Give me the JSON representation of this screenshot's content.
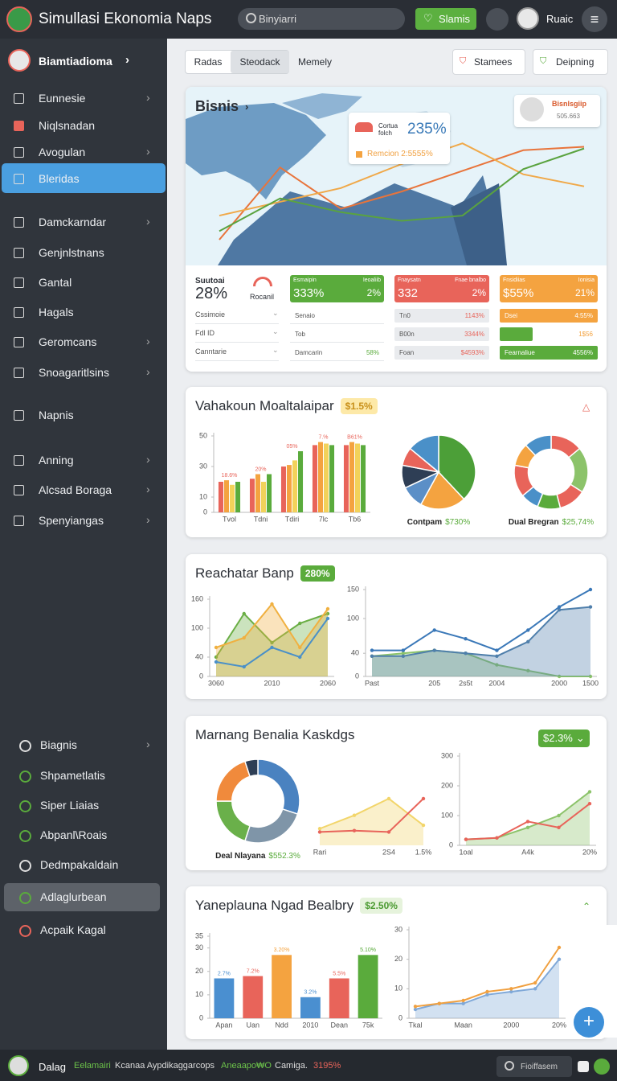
{
  "header": {
    "title": "Simullasi Ekonomia Naps",
    "search": "Binyiarri",
    "button": "Slamis",
    "user": "Ruaic"
  },
  "sidebar": {
    "profile": "Biamtiadioma",
    "menu": [
      "Eunnesie",
      "Niqlsnadan",
      "Avogulan",
      "Bleridas",
      "Damckarndar",
      "Genjnlstnans",
      "Gantal",
      "Hagals",
      "Geromcans",
      "Snoagaritlsins",
      "Napnis",
      "Anning",
      "Alcsad Boraga",
      "Spenyiangas"
    ],
    "active": 3,
    "lower": [
      "Biagnis",
      "Shpametlatis",
      "Siper Liaias",
      "Abpanl\\Roais",
      "Dedmpakaldain",
      "Adlaglurbean",
      "Acpaik Kagal"
    ],
    "lower_active": 5
  },
  "toolbar": {
    "tabs": [
      "Radas",
      "Steodack",
      "Memely"
    ],
    "active_tab": 1,
    "actions": [
      "Stamees",
      "Deipning"
    ]
  },
  "overview": {
    "title": "Bisnis",
    "profile": {
      "name": "Bisnlsgiip",
      "value": "505.663"
    },
    "callout": {
      "label": "Cortua folch",
      "value": "235%",
      "note": "Remcion 2:5555%"
    },
    "chart": {
      "type": "line",
      "ylim": [
        0,
        100
      ],
      "series": [
        {
          "color": "#e8743b",
          "values": [
            14,
            56,
            32,
            42,
            54,
            66,
            68
          ]
        },
        {
          "color": "#f0a848",
          "values": [
            28,
            36,
            44,
            58,
            70,
            52,
            45
          ]
        },
        {
          "color": "#5aa33f",
          "values": [
            19,
            38,
            30,
            25,
            28,
            55,
            67
          ]
        }
      ]
    },
    "summary": {
      "label": "Suutoai",
      "value": "28%",
      "brand": "Rocanil",
      "rows": [
        "Cssimoie",
        "Fdl ID",
        "Canntarie"
      ]
    },
    "tiles": [
      {
        "color": "#5aab3c",
        "title": "Esmaipin",
        "subtitle": "Ieoaliib",
        "value": "333%",
        "change": "2%",
        "rows": [
          {
            "label": "Senaio"
          },
          {
            "label": "Tob"
          },
          {
            "label": "Damcarin",
            "value": "58%"
          }
        ]
      },
      {
        "color": "#e8645a",
        "title": "Fnaysatn",
        "subtitle": "Fnae bnalbo",
        "value": "332",
        "change": "2%",
        "rows": [
          {
            "label": "Tn0",
            "value": "1143%"
          },
          {
            "label": "B00n",
            "value": "3344%"
          },
          {
            "label": "Foan",
            "value": "$4593%"
          }
        ]
      },
      {
        "color": "#f4a340",
        "title": "Fnsidiias",
        "subtitle": "Ionisia",
        "value": "$55%",
        "change": "21%",
        "rows": [
          {
            "label": "Dsei",
            "value": "4:55%"
          },
          {
            "value": "1$56"
          },
          {
            "label": "Fearnaliue",
            "value": "4556%"
          }
        ]
      }
    ]
  },
  "cards": [
    {
      "title": "Vahakoun Moaltalaipar",
      "badge": "$1.5%",
      "charts": [
        {
          "type": "bar",
          "categories": [
            "Tvol",
            "Tdni",
            "Tdiri",
            "7lc",
            "Tb6"
          ],
          "ylim": [
            0,
            50
          ],
          "yticks": [
            0,
            10,
            30,
            50
          ],
          "labels": [
            "18.6%",
            "20%",
            "05%",
            "7.%",
            "B61%"
          ],
          "series": [
            {
              "color": "#e8645a",
              "values": [
                20,
                22,
                30,
                44,
                44
              ]
            },
            {
              "color": "#f4a340",
              "values": [
                21,
                25,
                31,
                46,
                46
              ]
            },
            {
              "color": "#f2d25a",
              "values": [
                18,
                20,
                34,
                45,
                45
              ]
            },
            {
              "color": "#5aab3c",
              "values": [
                20,
                25,
                40,
                44,
                44
              ]
            }
          ]
        },
        {
          "type": "pie",
          "values": [
            38,
            20,
            10,
            10,
            8,
            14
          ],
          "colors": [
            "#4c9f38",
            "#f4a340",
            "#5b8fc7",
            "#2e3e55",
            "#e8645a",
            "#4a90c8"
          ],
          "donut": false,
          "caption": "Contpam",
          "caption_value": "$730%"
        },
        {
          "type": "pie",
          "values": [
            14,
            20,
            12,
            10,
            8,
            14,
            10,
            12
          ],
          "colors": [
            "#e8645a",
            "#8cc36a",
            "#e8645a",
            "#5aab3c",
            "#4a90c8",
            "#e8645a",
            "#f4a340",
            "#4a90c8"
          ],
          "donut": true,
          "caption": "Dual Bregran",
          "caption_value": "$25,74%"
        }
      ]
    },
    {
      "title": "Reachatar Banp",
      "badge": "280%",
      "charts": [
        {
          "type": "line",
          "categories": [
            "3060",
            null,
            "2010",
            null,
            "2060"
          ],
          "ylim": [
            0,
            160
          ],
          "yticks": [
            0,
            40,
            100,
            160
          ],
          "markers": true,
          "series": [
            {
              "color": "#6aae45",
              "area": true,
              "values": [
                40,
                130,
                70,
                110,
                130
              ]
            },
            {
              "color": "#f0b040",
              "area": true,
              "values": [
                60,
                80,
                150,
                60,
                140
              ]
            },
            {
              "color": "#4a90c8",
              "values": [
                30,
                20,
                60,
                40,
                120
              ]
            }
          ]
        },
        {
          "type": "line",
          "categories": [
            "Past",
            null,
            "205",
            "2s5t",
            "2004",
            null,
            "2000",
            "1500"
          ],
          "ylim": [
            0,
            150
          ],
          "yticks": [
            0,
            40,
            100,
            150
          ],
          "markers": true,
          "series": [
            {
              "color": "#8cc36a",
              "area": true,
              "values": [
                35,
                40,
                45,
                40,
                20,
                10,
                0,
                0
              ]
            },
            {
              "color": "#4f7fab",
              "area": true,
              "values": [
                35,
                35,
                45,
                40,
                35,
                60,
                115,
                120
              ]
            },
            {
              "color": "#3a78b8",
              "values": [
                45,
                45,
                80,
                65,
                45,
                80,
                120,
                150
              ]
            }
          ]
        }
      ]
    },
    {
      "title": "Marnang Benalia Kaskdgs",
      "badge": "$2.3%",
      "charts": [
        {
          "type": "pie",
          "values": [
            30,
            25,
            20,
            20,
            5
          ],
          "colors": [
            "#4a82c0",
            "#7f95a8",
            "#6ab04a",
            "#f08a3c",
            "#2e3e55"
          ],
          "donut": true,
          "caption": "Deal Nlayana",
          "caption_value": "$552.3%"
        },
        {
          "type": "line",
          "categories": [
            "Rari",
            null,
            "2S4",
            "1.5%"
          ],
          "ylim": [
            0,
            100
          ],
          "markers": true,
          "series": [
            {
              "color": "#f2d56a",
              "area": true,
              "values": [
                25,
                45,
                70,
                30
              ]
            },
            {
              "color": "#e8645a",
              "values": [
                20,
                22,
                20,
                70
              ]
            }
          ]
        },
        {
          "type": "line",
          "categories": [
            "1oal",
            null,
            "A4k",
            null,
            "20%"
          ],
          "ylim": [
            0,
            300
          ],
          "yticks": [
            0,
            100,
            200,
            300
          ],
          "markers": true,
          "series": [
            {
              "color": "#8cc36a",
              "area": true,
              "values": [
                20,
                25,
                60,
                100,
                180
              ]
            },
            {
              "color": "#e8645a",
              "values": [
                20,
                25,
                80,
                60,
                140
              ]
            }
          ]
        }
      ]
    },
    {
      "title": "Yaneplauna Ngad Bealbry",
      "badge": "$2.50%",
      "charts": [
        {
          "type": "bar",
          "categories": [
            "Apan",
            "Uan",
            "Ndd",
            "2010",
            "Dean",
            "75k"
          ],
          "ylim": [
            0,
            35
          ],
          "yticks": [
            0,
            10,
            20,
            30,
            35
          ],
          "labels": [
            "2.7%",
            "7.2%",
            "3.20%",
            "3.2%",
            "5.5%",
            "5.10%"
          ],
          "series": [
            {
              "colors": [
                "#4a8fd0",
                "#e8645a",
                "#f4a340",
                "#4a8fd0",
                "#e8645a",
                "#5aab3c"
              ],
              "values": [
                17,
                18,
                27,
                9,
                17,
                27
              ]
            }
          ]
        },
        {
          "type": "line",
          "categories": [
            "Tkal",
            null,
            "Maan",
            null,
            "2000",
            null,
            "20%"
          ],
          "ylim": [
            0,
            30
          ],
          "yticks": [
            0,
            10,
            20,
            30
          ],
          "markers": true,
          "series": [
            {
              "color": "#7fa8d8",
              "area": true,
              "values": [
                3,
                5,
                5,
                8,
                9,
                10,
                20
              ]
            },
            {
              "color": "#f0a040",
              "values": [
                4,
                5,
                6,
                9,
                10,
                12,
                24
              ]
            }
          ]
        }
      ]
    }
  ],
  "status": {
    "items": [
      "Dalag",
      "Eelamairi",
      "Kcanaa Aypdikaggarcops",
      "Aneaapo₩O",
      "Camiga.",
      "3195%"
    ],
    "search": "Fioiffasem"
  }
}
